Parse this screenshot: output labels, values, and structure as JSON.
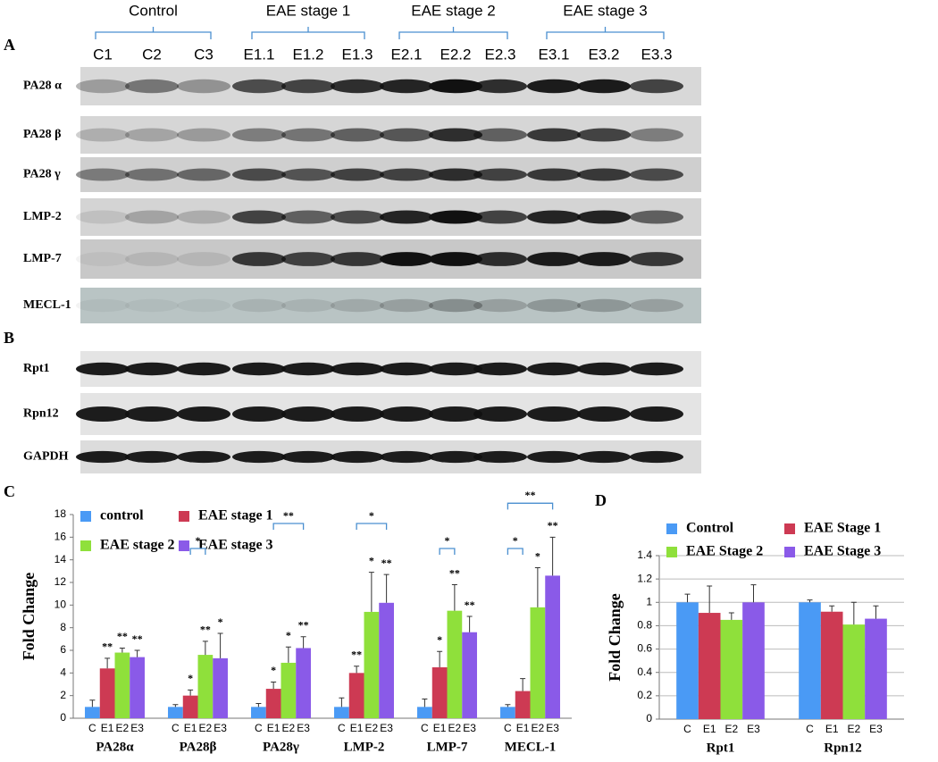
{
  "panels": {
    "a": "A",
    "b": "B",
    "c": "C",
    "d": "D"
  },
  "blots": {
    "groups": [
      "Control",
      "EAE stage 1",
      "EAE stage 2",
      "EAE stage 3"
    ],
    "lanes": [
      "C1",
      "C2",
      "C3",
      "E1.1",
      "E1.2",
      "E1.3",
      "E2.1",
      "E2.2",
      "E2.3",
      "E3.1",
      "E3.2",
      "E3.3"
    ],
    "rows_a": [
      "PA28 α",
      "PA28 β",
      "PA28 γ",
      "LMP-2",
      "LMP-7",
      "MECL-1"
    ],
    "rows_b": [
      "Rpt1",
      "Rpn12",
      "GAPDH"
    ]
  },
  "chart_data": [
    {
      "type": "bar",
      "y_label": "Fold Change",
      "categories": [
        "PA28α",
        "PA28β",
        "PA28γ",
        "LMP-2",
        "LMP-7",
        "MECL-1"
      ],
      "sublabels": [
        "C",
        "E1",
        "E2",
        "E3"
      ],
      "series": [
        {
          "name": "control",
          "color": "#4a9af5",
          "values": [
            1,
            1,
            1,
            1,
            1,
            1
          ],
          "errors": [
            0.6,
            0.2,
            0.3,
            0.8,
            0.7,
            0.2
          ],
          "significance": [
            null,
            null,
            null,
            null,
            null,
            null
          ]
        },
        {
          "name": "EAE stage 1",
          "color": "#cd3a53",
          "values": [
            4.4,
            2.0,
            2.6,
            4.0,
            4.5,
            2.4
          ],
          "errors": [
            0.9,
            0.5,
            0.6,
            0.6,
            1.4,
            1.1
          ],
          "significance": [
            "**",
            "*",
            "*",
            "**",
            "*",
            null
          ]
        },
        {
          "name": "EAE stage 2",
          "color": "#8fe03b",
          "values": [
            5.8,
            5.6,
            4.9,
            9.4,
            9.5,
            9.8
          ],
          "errors": [
            0.4,
            1.2,
            1.4,
            3.5,
            2.3,
            3.5
          ],
          "significance": [
            "**",
            "**",
            "*",
            "*",
            "**",
            "*"
          ]
        },
        {
          "name": "EAE stage 3",
          "color": "#8a5ae8",
          "values": [
            5.4,
            5.3,
            6.2,
            10.2,
            7.6,
            12.6
          ],
          "errors": [
            0.6,
            2.2,
            1.0,
            2.5,
            1.4,
            3.4
          ],
          "significance": [
            "**",
            "*",
            "**",
            "**",
            "**",
            "**"
          ]
        }
      ],
      "brackets": [
        {
          "category": "PA28β",
          "from": "EAE stage 1",
          "to": "EAE stage 2",
          "label": "*"
        },
        {
          "category": "PA28γ",
          "from": "EAE stage 1",
          "to": "EAE stage 3",
          "label": "**"
        },
        {
          "category": "LMP-2",
          "from": "EAE stage 1",
          "to": "EAE stage 3",
          "label": "*"
        },
        {
          "category": "LMP-7",
          "from": "EAE stage 1",
          "to": "EAE stage 2",
          "label": "*"
        },
        {
          "category": "MECL-1",
          "from": "control",
          "to": "EAE stage 1",
          "label": "*"
        },
        {
          "category": "MECL-1",
          "from": "control",
          "to": "EAE stage 3",
          "label": "**"
        }
      ],
      "ylim": [
        0,
        18
      ],
      "yticks": [
        0,
        2,
        4,
        6,
        8,
        10,
        12,
        14,
        16,
        18
      ],
      "grid": false
    },
    {
      "type": "bar",
      "y_label": "Fold Change",
      "categories": [
        "Rpt1",
        "Rpn12"
      ],
      "sublabels": [
        "C",
        "E1",
        "E2",
        "E3"
      ],
      "series": [
        {
          "name": "Control",
          "color": "#4a9af5",
          "values": [
            1.0,
            1.0
          ],
          "errors": [
            0.07,
            0.02
          ]
        },
        {
          "name": "EAE Stage 1",
          "color": "#cd3a53",
          "values": [
            0.91,
            0.92
          ],
          "errors": [
            0.23,
            0.05
          ]
        },
        {
          "name": "EAE Stage 2",
          "color": "#8fe03b",
          "values": [
            0.85,
            0.81
          ],
          "errors": [
            0.06,
            0.19
          ]
        },
        {
          "name": "EAE Stage 3",
          "color": "#8a5ae8",
          "values": [
            1.0,
            0.86
          ],
          "errors": [
            0.15,
            0.11
          ]
        }
      ],
      "ylim": [
        0,
        1.4
      ],
      "yticks": [
        0,
        0.2,
        0.4,
        0.6,
        0.8,
        1,
        1.2,
        1.4
      ],
      "grid": true
    }
  ]
}
